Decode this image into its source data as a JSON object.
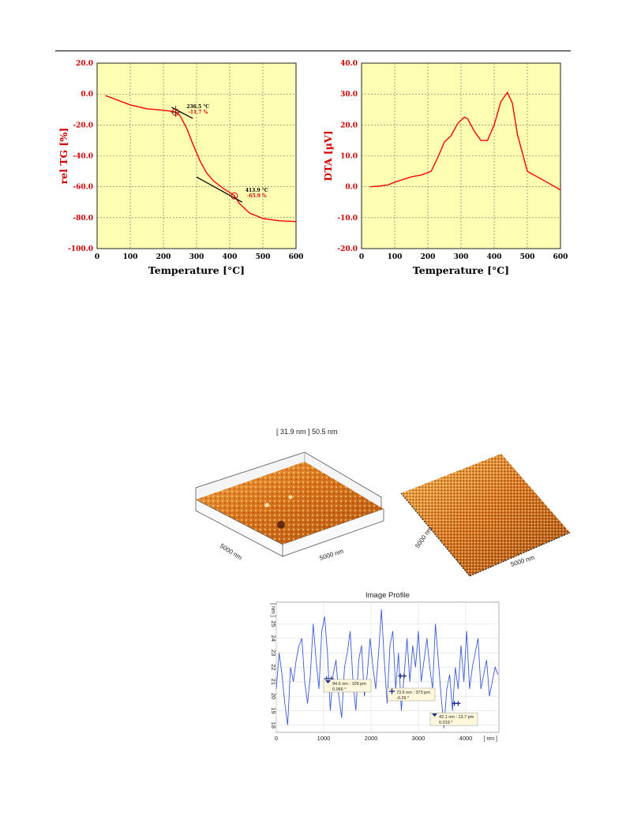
{
  "chart_data": [
    {
      "type": "line",
      "xlabel": "Temperature [°C]",
      "ylabel": "rel TG [%]",
      "xlim": [
        0,
        600
      ],
      "ylim": [
        -100,
        20
      ],
      "xticks": [
        "0",
        "100",
        "200",
        "300",
        "400",
        "500",
        "600"
      ],
      "yticks": [
        "20.0",
        "0.0",
        "-20.0",
        "-40.0",
        "-60.0",
        "-80.0",
        "-100.0"
      ],
      "background": "#ffffb4",
      "line_color": "#ff0000",
      "grid": true,
      "series": [
        {
          "x": [
            25,
            50,
            100,
            150,
            200,
            230,
            236,
            250,
            270,
            290,
            310,
            330,
            350,
            380,
            410,
            414,
            430,
            460,
            500,
            550,
            600
          ],
          "y": [
            -1,
            -3,
            -7,
            -9.5,
            -10.5,
            -11.3,
            -11.7,
            -14,
            -22,
            -33,
            -43,
            -51,
            -56,
            -61,
            -65,
            -65.9,
            -71,
            -77,
            -80.5,
            -82,
            -82.5
          ]
        }
      ],
      "annotations": [
        {
          "x": 236.5,
          "y": -11.7,
          "line1": "236.5 °C",
          "line2": "-11.7 %"
        },
        {
          "x": 413.9,
          "y": -65.9,
          "line1": "413.9 °C",
          "line2": "-65.9 %"
        }
      ]
    },
    {
      "type": "line",
      "xlabel": "Temperature [°C]",
      "ylabel": "DTA [µV]",
      "xlim": [
        0,
        600
      ],
      "ylim": [
        -20,
        40
      ],
      "xticks": [
        "0",
        "100",
        "200",
        "300",
        "400",
        "500",
        "600"
      ],
      "yticks": [
        "40.0",
        "30.0",
        "20.0",
        "10.0",
        "0.0",
        "-10.0",
        "-20.0"
      ],
      "background": "#ffffb4",
      "line_color": "#ff0000",
      "grid": true,
      "series": [
        {
          "x": [
            25,
            50,
            80,
            100,
            150,
            180,
            210,
            230,
            250,
            270,
            290,
            310,
            320,
            340,
            360,
            380,
            400,
            420,
            440,
            455,
            470,
            500,
            550,
            600
          ],
          "y": [
            0,
            0.2,
            0.6,
            1.5,
            3.2,
            3.8,
            5,
            9.5,
            14.5,
            16.5,
            20.5,
            22.5,
            22,
            18,
            15,
            15,
            20,
            27.5,
            30.5,
            27,
            17,
            5,
            2,
            -1
          ]
        }
      ]
    },
    {
      "type": "line",
      "title": "Image Profile",
      "xlabel": "[ nm ]",
      "ylabel": "[ nm ]",
      "xlim": [
        0,
        4700
      ],
      "ylim": [
        17.5,
        26.5
      ],
      "xticks": [
        "0",
        "1000",
        "2000",
        "3000",
        "4000"
      ],
      "yticks": [
        "18",
        "19",
        "20",
        "21",
        "22",
        "23",
        "24",
        "25"
      ],
      "line_color": "#3a5ad8",
      "grid": true,
      "series": [
        {
          "x": [
            0,
            60,
            120,
            180,
            240,
            300,
            360,
            420,
            480,
            540,
            600,
            660,
            720,
            780,
            840,
            900,
            960,
            1020,
            1080,
            1140,
            1200,
            1260,
            1320,
            1380,
            1440,
            1500,
            1560,
            1620,
            1680,
            1740,
            1800,
            1860,
            1920,
            1980,
            2040,
            2100,
            2160,
            2220,
            2280,
            2340,
            2400,
            2460,
            2520,
            2580,
            2640,
            2700,
            2760,
            2820,
            2880,
            2940,
            3000,
            3060,
            3120,
            3180,
            3240,
            3300,
            3360,
            3420,
            3480,
            3540,
            3600,
            3660,
            3720,
            3780,
            3840,
            3900,
            3960,
            4020,
            4080,
            4140,
            4200,
            4260,
            4320,
            4380,
            4440,
            4500,
            4560,
            4620,
            4680
          ],
          "y": [
            20.5,
            23,
            21.5,
            19.5,
            18,
            22,
            21,
            22.5,
            23.5,
            24,
            21,
            19.5,
            21.5,
            25,
            22.5,
            20.5,
            24.5,
            25.5,
            23,
            19,
            21.5,
            22.5,
            20,
            18.5,
            22,
            23,
            24.5,
            21,
            19,
            22.5,
            23.5,
            20,
            21.5,
            24,
            22,
            20.5,
            23,
            26,
            22.5,
            19.5,
            23.5,
            24.5,
            20.5,
            23,
            19,
            21.5,
            24,
            21,
            23.5,
            22,
            24.5,
            21,
            22.5,
            24,
            22,
            20.5,
            25,
            22.5,
            20,
            17.8,
            20.5,
            21.5,
            19,
            22,
            20.5,
            23.5,
            21,
            24.5,
            20.5,
            22,
            23,
            24,
            20.5,
            21.5,
            22.5,
            20,
            21,
            22,
            21.5
          ]
        }
      ],
      "markers": [
        {
          "label1": "94.6 nm : 109 pm",
          "label2": "0.066 °"
        },
        {
          "label1": "73.6 nm : 373 pm",
          "label2": "-0.29 °"
        },
        {
          "label1": "42.1 nm : 13.7 pm",
          "label2": "0.019 °"
        }
      ]
    }
  ],
  "afm": {
    "scale_label": "[ 31.9 nm ] 50.5 nm",
    "left_axis_a": "5000 nm",
    "left_axis_b": "5000 nm",
    "right_axis_a": "5000 nm",
    "right_axis_b": "5000 nm"
  }
}
